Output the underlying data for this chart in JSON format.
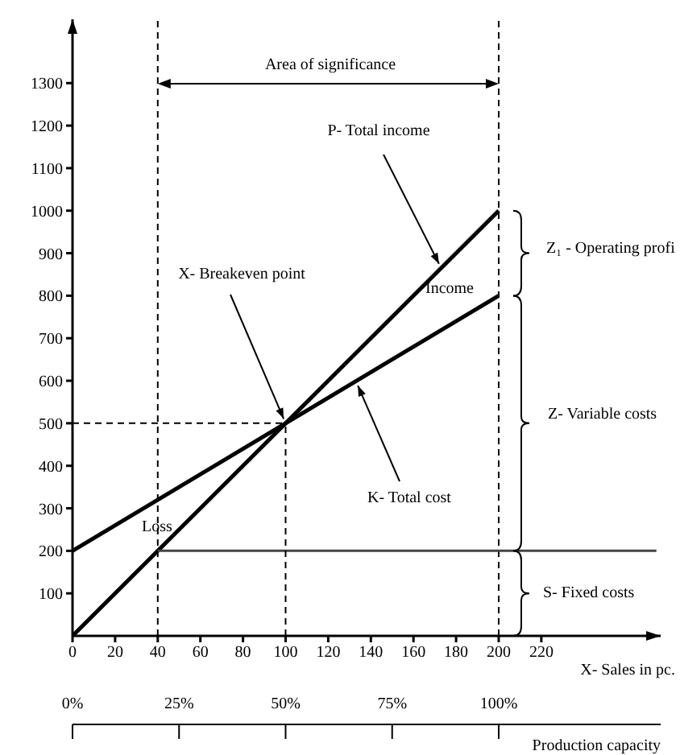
{
  "chart_data": {
    "type": "line",
    "xlabel": "X- Sales in pc.",
    "x2label": "Production capacity",
    "xlim": [
      0,
      276
    ],
    "xticks": [
      0,
      20,
      40,
      60,
      80,
      100,
      120,
      140,
      160,
      180,
      200,
      220
    ],
    "ylim": [
      0,
      1450
    ],
    "yticks": [
      100,
      200,
      300,
      400,
      500,
      600,
      700,
      800,
      900,
      1000,
      1100,
      1200,
      1300
    ],
    "x2lim": [
      0,
      138
    ],
    "x2ticks": [
      {
        "value": 0,
        "label": "0%"
      },
      {
        "value": 25,
        "label": "25%"
      },
      {
        "value": 50,
        "label": "50%"
      },
      {
        "value": 75,
        "label": "75%"
      },
      {
        "value": 100,
        "label": "100%"
      }
    ],
    "series": [
      {
        "color": "#000000",
        "x": [
          0,
          200
        ],
        "values": [
          0,
          1000
        ]
      },
      {
        "color": "#000000",
        "x": [
          0,
          200
        ],
        "values": [
          200,
          800
        ]
      },
      {
        "color": "#444444",
        "x": [
          40,
          274
        ],
        "values": [
          200,
          200
        ]
      },
      {
        "color": "#000000",
        "line_style": "dashed",
        "x": [
          0,
          100
        ],
        "values": [
          500,
          500
        ]
      },
      {
        "color": "#000000",
        "line_style": "dashed",
        "x": [
          100,
          100
        ],
        "values": [
          0,
          500
        ]
      }
    ],
    "ref_lines": [
      {
        "axis": "x",
        "value": 40,
        "color": "#000000",
        "line_style": "dashed"
      },
      {
        "axis": "x",
        "value": 200,
        "color": "#000000",
        "line_style": "dashed"
      }
    ],
    "annotations": [
      "Area of significance",
      {
        "text": "P- Total income",
        "x": 173,
        "y": 865
      },
      {
        "text": "X- Breakeven point",
        "x": 100,
        "y": 500
      },
      {
        "text": "K- Total cost",
        "x": 133,
        "y": 599
      },
      "Income",
      "Loss",
      "Z₁ - Operating profi",
      "Z- Variable costs",
      "S- Fixed costs"
    ]
  }
}
